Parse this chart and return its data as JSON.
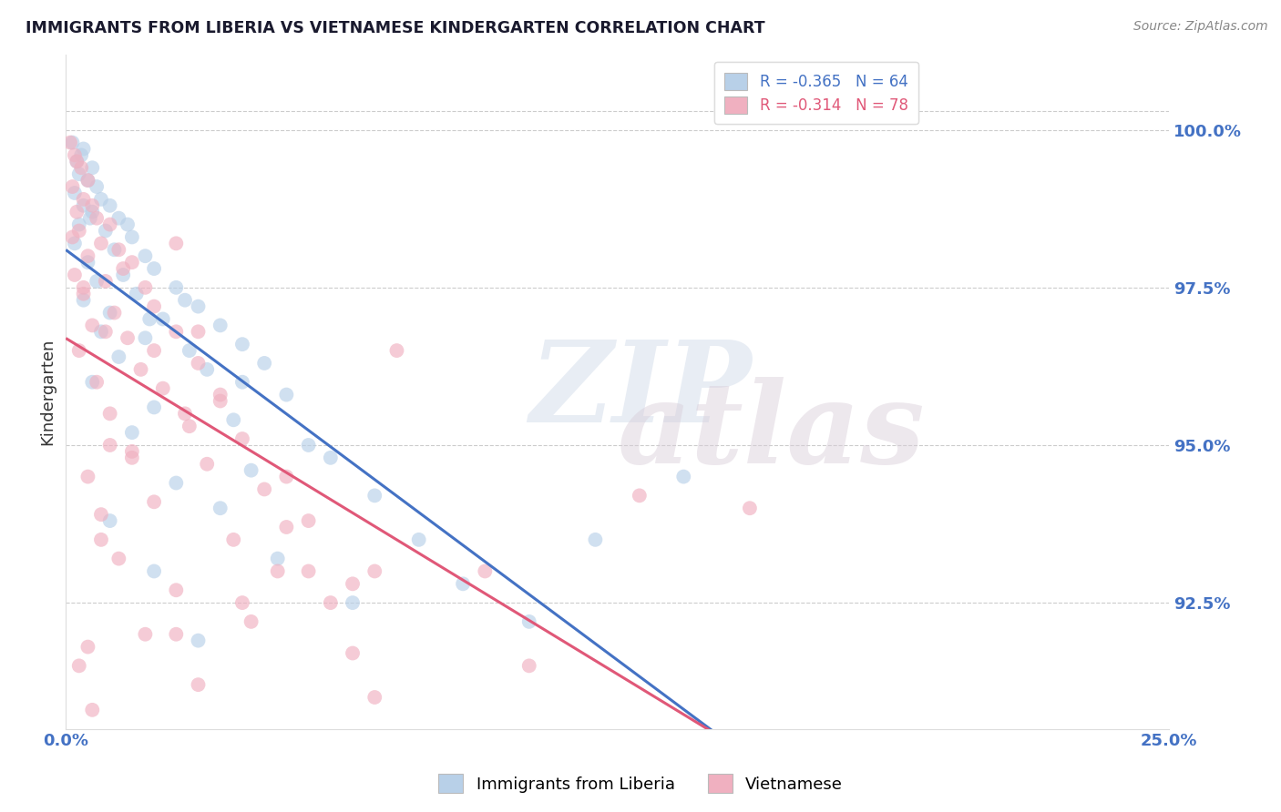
{
  "title": "IMMIGRANTS FROM LIBERIA VS VIETNAMESE KINDERGARTEN CORRELATION CHART",
  "source": "Source: ZipAtlas.com",
  "ylabel": "Kindergarten",
  "xlim": [
    0.0,
    25.0
  ],
  "ylim": [
    90.5,
    101.2
  ],
  "yticks": [
    92.5,
    95.0,
    97.5,
    100.0
  ],
  "ytick_labels": [
    "92.5%",
    "95.0%",
    "97.5%",
    "100.0%"
  ],
  "xticks": [
    0.0,
    25.0
  ],
  "xtick_labels": [
    "0.0%",
    "25.0%"
  ],
  "legend_entries": [
    {
      "label": "R = -0.365   N = 64"
    },
    {
      "label": "R = -0.314   N = 78"
    }
  ],
  "bottom_legend": [
    "Immigrants from Liberia",
    "Vietnamese"
  ],
  "blue_scatter_color": "#b8d0e8",
  "pink_scatter_color": "#f0b0c0",
  "blue_line_color": "#4472c4",
  "pink_line_color": "#e05878",
  "blue_legend_color": "#4472c4",
  "pink_legend_color": "#e05878",
  "background_color": "#ffffff",
  "grid_color": "#cccccc",
  "title_color": "#1a1a2e",
  "source_color": "#888888",
  "axis_label_color": "#333333",
  "tick_color": "#4472c4",
  "blue_points": [
    [
      0.15,
      99.8
    ],
    [
      0.4,
      99.7
    ],
    [
      0.25,
      99.5
    ],
    [
      0.6,
      99.4
    ],
    [
      0.3,
      99.3
    ],
    [
      0.5,
      99.2
    ],
    [
      0.7,
      99.1
    ],
    [
      0.2,
      99.0
    ],
    [
      0.8,
      98.9
    ],
    [
      0.4,
      98.8
    ],
    [
      1.0,
      98.8
    ],
    [
      0.6,
      98.7
    ],
    [
      1.2,
      98.6
    ],
    [
      0.3,
      98.5
    ],
    [
      0.9,
      98.4
    ],
    [
      1.5,
      98.3
    ],
    [
      0.2,
      98.2
    ],
    [
      1.1,
      98.1
    ],
    [
      1.8,
      98.0
    ],
    [
      0.5,
      97.9
    ],
    [
      2.0,
      97.8
    ],
    [
      1.3,
      97.7
    ],
    [
      0.7,
      97.6
    ],
    [
      2.5,
      97.5
    ],
    [
      1.6,
      97.4
    ],
    [
      0.4,
      97.3
    ],
    [
      3.0,
      97.2
    ],
    [
      1.0,
      97.1
    ],
    [
      2.2,
      97.0
    ],
    [
      3.5,
      96.9
    ],
    [
      0.8,
      96.8
    ],
    [
      1.8,
      96.7
    ],
    [
      4.0,
      96.6
    ],
    [
      2.8,
      96.5
    ],
    [
      1.2,
      96.4
    ],
    [
      4.5,
      96.3
    ],
    [
      3.2,
      96.2
    ],
    [
      0.6,
      96.0
    ],
    [
      5.0,
      95.8
    ],
    [
      2.0,
      95.6
    ],
    [
      3.8,
      95.4
    ],
    [
      1.5,
      95.2
    ],
    [
      5.5,
      95.0
    ],
    [
      6.0,
      94.8
    ],
    [
      4.2,
      94.6
    ],
    [
      2.5,
      94.4
    ],
    [
      7.0,
      94.2
    ],
    [
      3.5,
      94.0
    ],
    [
      1.0,
      93.8
    ],
    [
      8.0,
      93.5
    ],
    [
      4.8,
      93.2
    ],
    [
      2.0,
      93.0
    ],
    [
      9.0,
      92.8
    ],
    [
      6.5,
      92.5
    ],
    [
      10.5,
      92.2
    ],
    [
      3.0,
      91.9
    ],
    [
      12.0,
      93.5
    ],
    [
      14.0,
      94.5
    ],
    [
      0.35,
      99.6
    ],
    [
      1.4,
      98.5
    ],
    [
      2.7,
      97.3
    ],
    [
      0.55,
      98.6
    ],
    [
      4.0,
      96.0
    ],
    [
      1.9,
      97.0
    ]
  ],
  "pink_points": [
    [
      0.1,
      99.8
    ],
    [
      0.2,
      99.6
    ],
    [
      0.35,
      99.4
    ],
    [
      0.5,
      99.2
    ],
    [
      0.15,
      99.1
    ],
    [
      0.4,
      98.9
    ],
    [
      0.6,
      98.8
    ],
    [
      0.25,
      98.7
    ],
    [
      0.7,
      98.6
    ],
    [
      1.0,
      98.5
    ],
    [
      0.3,
      98.4
    ],
    [
      0.8,
      98.2
    ],
    [
      1.2,
      98.1
    ],
    [
      0.5,
      98.0
    ],
    [
      1.5,
      97.9
    ],
    [
      0.2,
      97.7
    ],
    [
      0.9,
      97.6
    ],
    [
      1.8,
      97.5
    ],
    [
      0.4,
      97.4
    ],
    [
      2.0,
      97.2
    ],
    [
      1.1,
      97.1
    ],
    [
      0.6,
      96.9
    ],
    [
      2.5,
      96.8
    ],
    [
      1.4,
      96.7
    ],
    [
      0.3,
      96.5
    ],
    [
      3.0,
      96.3
    ],
    [
      1.7,
      96.2
    ],
    [
      0.7,
      96.0
    ],
    [
      2.2,
      95.9
    ],
    [
      3.5,
      95.7
    ],
    [
      1.0,
      95.5
    ],
    [
      2.8,
      95.3
    ],
    [
      4.0,
      95.1
    ],
    [
      1.5,
      94.9
    ],
    [
      3.2,
      94.7
    ],
    [
      0.5,
      94.5
    ],
    [
      4.5,
      94.3
    ],
    [
      2.0,
      94.1
    ],
    [
      0.8,
      93.9
    ],
    [
      5.0,
      93.7
    ],
    [
      3.8,
      93.5
    ],
    [
      1.2,
      93.2
    ],
    [
      5.5,
      93.0
    ],
    [
      2.5,
      92.7
    ],
    [
      6.0,
      92.5
    ],
    [
      4.2,
      92.2
    ],
    [
      1.8,
      92.0
    ],
    [
      6.5,
      91.7
    ],
    [
      0.3,
      91.5
    ],
    [
      3.0,
      91.2
    ],
    [
      7.0,
      91.0
    ],
    [
      0.6,
      90.8
    ],
    [
      2.0,
      96.5
    ],
    [
      1.3,
      97.8
    ],
    [
      3.5,
      95.8
    ],
    [
      5.0,
      94.5
    ],
    [
      4.8,
      93.0
    ],
    [
      0.9,
      96.8
    ],
    [
      6.5,
      92.8
    ],
    [
      2.7,
      95.5
    ],
    [
      7.5,
      96.5
    ],
    [
      0.15,
      98.3
    ],
    [
      1.5,
      94.8
    ],
    [
      4.0,
      92.5
    ],
    [
      10.5,
      91.5
    ],
    [
      13.0,
      94.2
    ],
    [
      0.25,
      99.5
    ],
    [
      2.5,
      98.2
    ],
    [
      0.4,
      97.5
    ],
    [
      3.0,
      96.8
    ],
    [
      15.5,
      94.0
    ],
    [
      1.0,
      95.0
    ],
    [
      5.5,
      93.8
    ],
    [
      7.0,
      93.0
    ],
    [
      0.5,
      91.8
    ],
    [
      2.5,
      92.0
    ],
    [
      0.8,
      93.5
    ],
    [
      9.5,
      93.0
    ]
  ]
}
